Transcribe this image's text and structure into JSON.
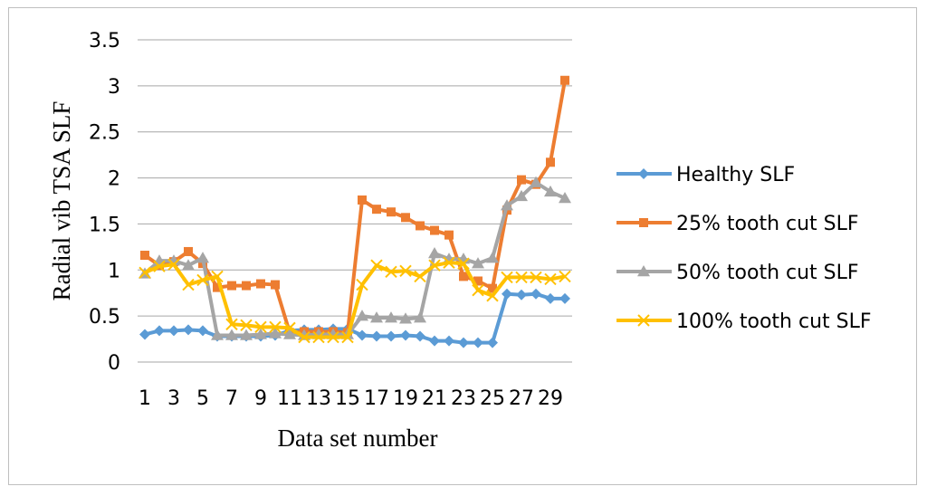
{
  "chart_data": {
    "type": "line",
    "xlabel": "Data set number",
    "ylabel": "Radial vib TSA SLF",
    "ylim": [
      0,
      3.5
    ],
    "yticks": [
      "0",
      "0.5",
      "1",
      "1.5",
      "2",
      "2.5",
      "3",
      "3.5"
    ],
    "x": [
      1,
      2,
      3,
      4,
      5,
      6,
      7,
      8,
      9,
      10,
      11,
      12,
      13,
      14,
      15,
      16,
      17,
      18,
      19,
      20,
      21,
      22,
      23,
      24,
      25,
      26,
      27,
      28,
      29,
      30
    ],
    "xtick_labels": [
      "1",
      "3",
      "5",
      "7",
      "9",
      "11",
      "13",
      "15",
      "17",
      "19",
      "21",
      "23",
      "25",
      "27",
      "29"
    ],
    "xtick_values": [
      1,
      3,
      5,
      7,
      9,
      11,
      13,
      15,
      17,
      19,
      21,
      23,
      25,
      27,
      29
    ],
    "grid": "horizontal",
    "legend_position": "right",
    "series": [
      {
        "name": "Healthy SLF",
        "color": "#5B9BD5",
        "marker": "diamond",
        "values": [
          0.3,
          0.34,
          0.34,
          0.35,
          0.34,
          0.28,
          0.28,
          0.28,
          0.28,
          0.29,
          0.34,
          0.35,
          0.35,
          0.36,
          0.36,
          0.29,
          0.28,
          0.28,
          0.29,
          0.28,
          0.23,
          0.23,
          0.21,
          0.21,
          0.21,
          0.74,
          0.73,
          0.74,
          0.69,
          0.69
        ]
      },
      {
        "name": "25% tooth cut SLF",
        "color": "#ED7D31",
        "marker": "square",
        "values": [
          1.16,
          1.05,
          1.09,
          1.2,
          1.07,
          0.81,
          0.83,
          0.83,
          0.85,
          0.84,
          0.32,
          0.33,
          0.33,
          0.33,
          0.32,
          1.76,
          1.66,
          1.63,
          1.57,
          1.48,
          1.43,
          1.38,
          0.93,
          0.88,
          0.8,
          1.65,
          1.98,
          1.93,
          2.17,
          3.06
        ]
      },
      {
        "name": "50% tooth cut SLF",
        "color": "#A5A5A5",
        "marker": "triangle",
        "values": [
          0.96,
          1.1,
          1.1,
          1.05,
          1.13,
          0.29,
          0.29,
          0.29,
          0.3,
          0.31,
          0.3,
          0.29,
          0.3,
          0.3,
          0.3,
          0.5,
          0.48,
          0.48,
          0.47,
          0.48,
          1.18,
          1.12,
          1.12,
          1.07,
          1.13,
          1.7,
          1.8,
          1.95,
          1.85,
          1.78
        ]
      },
      {
        "name": "100% tooth cut SLF",
        "color": "#FFC000",
        "marker": "x",
        "values": [
          0.97,
          1.04,
          1.06,
          0.84,
          0.89,
          0.93,
          0.41,
          0.4,
          0.38,
          0.38,
          0.37,
          0.27,
          0.27,
          0.27,
          0.27,
          0.84,
          1.05,
          0.98,
          0.99,
          0.93,
          1.05,
          1.08,
          1.07,
          0.78,
          0.72,
          0.92,
          0.92,
          0.92,
          0.9,
          0.93
        ]
      }
    ]
  }
}
